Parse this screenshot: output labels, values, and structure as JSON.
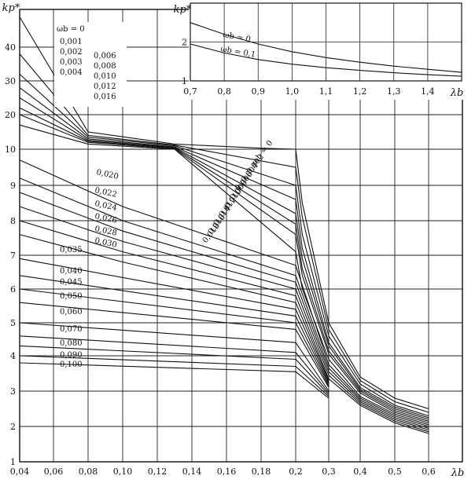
{
  "chart_data": [
    {
      "type": "line",
      "ylabel": "kp*",
      "xlabel": "λb",
      "x_ticks": [
        "0,04",
        "0,06",
        "0,08",
        "0,10",
        "0,12",
        "0,14",
        "0,16",
        "0,18",
        "0,2",
        "0,3",
        "0,4",
        "0,5",
        "0,6"
      ],
      "y_ticks": [
        "1",
        "2",
        "3",
        "4",
        "5",
        "6",
        "7",
        "8",
        "9",
        "10",
        "20",
        "30",
        "40"
      ],
      "grid": true,
      "series_labels_upper": [
        "ωb = 0",
        "0,001",
        "0,002",
        "0,003",
        "0,004",
        "0,006",
        "0,008",
        "0,010",
        "0,012",
        "0,016"
      ],
      "series_labels_right": [
        "ωb = 0",
        "0,002",
        "0,004",
        "0,006",
        "0,008",
        "0,010",
        "0,012",
        "0,014",
        "0,016",
        "0,018"
      ],
      "series_labels_lower": [
        "0,020",
        "0,022",
        "0,024",
        "0,026",
        "0,028",
        "0,030",
        "0,035",
        "0,040",
        "0,045",
        "0,050",
        "0,060",
        "0,070",
        "0,080",
        "0,090",
        "0,100"
      ],
      "series": [
        {
          "omega": 0.0,
          "x": [
            0.04,
            0.08,
            0.13,
            0.18,
            0.2,
            0.22,
            0.3,
            0.4,
            0.5,
            0.6
          ],
          "y": [
            48,
            15,
            11.5,
            10.3,
            10.0,
            8.5,
            5.0,
            3.4,
            2.8,
            2.5
          ]
        },
        {
          "omega": 0.002,
          "x": [
            0.04,
            0.08,
            0.13,
            0.2,
            0.22,
            0.3,
            0.4,
            0.5,
            0.6
          ],
          "y": [
            38,
            14,
            11.2,
            9.5,
            8.1,
            4.8,
            3.3,
            2.7,
            2.4
          ]
        },
        {
          "omega": 0.004,
          "x": [
            0.04,
            0.08,
            0.13,
            0.2,
            0.22,
            0.3,
            0.4,
            0.5,
            0.6
          ],
          "y": [
            32,
            13.5,
            11.0,
            9.0,
            7.6,
            4.6,
            3.2,
            2.6,
            2.3
          ]
        },
        {
          "omega": 0.006,
          "x": [
            0.04,
            0.08,
            0.13,
            0.2,
            0.22,
            0.3,
            0.4,
            0.5,
            0.6
          ],
          "y": [
            28,
            13.0,
            10.7,
            8.6,
            7.2,
            4.4,
            3.1,
            2.55,
            2.25
          ]
        },
        {
          "omega": 0.008,
          "x": [
            0.04,
            0.08,
            0.13,
            0.2,
            0.22,
            0.3,
            0.4,
            0.5,
            0.6
          ],
          "y": [
            25,
            12.6,
            10.5,
            8.2,
            6.9,
            4.3,
            3.05,
            2.5,
            2.2
          ]
        },
        {
          "omega": 0.01,
          "x": [
            0.04,
            0.08,
            0.13,
            0.2,
            0.22,
            0.3,
            0.4,
            0.5,
            0.6
          ],
          "y": [
            22,
            12.3,
            10.3,
            7.9,
            6.6,
            4.15,
            3.0,
            2.45,
            2.15
          ]
        },
        {
          "omega": 0.012,
          "x": [
            0.04,
            0.08,
            0.13,
            0.2,
            0.22,
            0.3,
            0.4,
            0.5,
            0.6
          ],
          "y": [
            20,
            12.0,
            10.1,
            7.6,
            6.4,
            4.05,
            2.95,
            2.4,
            2.1
          ]
        },
        {
          "omega": 0.016,
          "x": [
            0.04,
            0.08,
            0.13,
            0.2,
            0.22,
            0.3,
            0.4,
            0.5,
            0.6
          ],
          "y": [
            17,
            11.5,
            10.0,
            7.1,
            6.0,
            3.9,
            2.85,
            2.35,
            2.05
          ]
        },
        {
          "omega": 0.02,
          "x": [
            0.04,
            0.1,
            0.2,
            0.3,
            0.4,
            0.5,
            0.6
          ],
          "y": [
            9.7,
            8.4,
            6.7,
            3.75,
            2.8,
            2.3,
            2.0
          ]
        },
        {
          "omega": 0.022,
          "x": [
            0.04,
            0.1,
            0.2,
            0.3,
            0.4,
            0.5,
            0.6
          ],
          "y": [
            9.2,
            8.0,
            6.4,
            3.65,
            2.75,
            2.25,
            1.95
          ]
        },
        {
          "omega": 0.024,
          "x": [
            0.04,
            0.1,
            0.2,
            0.3,
            0.4,
            0.5,
            0.6
          ],
          "y": [
            8.8,
            7.7,
            6.2,
            3.55,
            2.7,
            2.2,
            1.9
          ]
        },
        {
          "omega": 0.026,
          "x": [
            0.04,
            0.1,
            0.2,
            0.3,
            0.4,
            0.5,
            0.6
          ],
          "y": [
            8.4,
            7.4,
            6.0,
            3.45,
            2.65,
            2.15,
            1.85
          ]
        },
        {
          "omega": 0.028,
          "x": [
            0.04,
            0.1,
            0.2,
            0.3,
            0.4,
            0.5,
            0.6
          ],
          "y": [
            8.0,
            7.1,
            5.8,
            3.35,
            2.6,
            2.1,
            1.8
          ]
        },
        {
          "omega": 0.03,
          "x": [
            0.04,
            0.1,
            0.2,
            0.3
          ],
          "y": [
            7.6,
            6.8,
            5.6,
            3.3
          ]
        },
        {
          "omega": 0.035,
          "x": [
            0.04,
            0.2,
            0.3
          ],
          "y": [
            6.9,
            5.4,
            3.25
          ]
        },
        {
          "omega": 0.04,
          "x": [
            0.04,
            0.2,
            0.3
          ],
          "y": [
            6.4,
            5.2,
            3.2
          ]
        },
        {
          "omega": 0.045,
          "x": [
            0.04,
            0.2,
            0.3
          ],
          "y": [
            6.0,
            5.0,
            3.15
          ]
        },
        {
          "omega": 0.05,
          "x": [
            0.04,
            0.2,
            0.3
          ],
          "y": [
            5.6,
            4.8,
            3.1
          ]
        },
        {
          "omega": 0.06,
          "x": [
            0.04,
            0.2,
            0.3
          ],
          "y": [
            5.0,
            4.4,
            3.0
          ]
        },
        {
          "omega": 0.07,
          "x": [
            0.04,
            0.2,
            0.3
          ],
          "y": [
            4.6,
            4.1,
            2.95
          ]
        },
        {
          "omega": 0.08,
          "x": [
            0.04,
            0.2,
            0.3
          ],
          "y": [
            4.3,
            3.9,
            2.9
          ]
        },
        {
          "omega": 0.09,
          "x": [
            0.04,
            0.2,
            0.3
          ],
          "y": [
            4.0,
            3.7,
            2.85
          ]
        },
        {
          "omega": 0.1,
          "x": [
            0.04,
            0.2,
            0.3
          ],
          "y": [
            3.8,
            3.55,
            2.8
          ]
        }
      ]
    },
    {
      "type": "line",
      "ylabel": "kp*",
      "xlabel": "λb",
      "x_ticks": [
        "0,7",
        "0,8",
        "0,9",
        "1,0",
        "1,1",
        "1,2",
        "1,3",
        "1,4"
      ],
      "y_ticks": [
        "1",
        "2"
      ],
      "xlim": [
        0.7,
        1.5
      ],
      "ylim": [
        1,
        3
      ],
      "grid": true,
      "series": [
        {
          "name": "ωb = 0",
          "x": [
            0.7,
            0.8,
            0.9,
            1.0,
            1.1,
            1.2,
            1.3,
            1.4,
            1.5
          ],
          "y": [
            2.5,
            2.2,
            1.95,
            1.75,
            1.6,
            1.48,
            1.38,
            1.3,
            1.22
          ]
        },
        {
          "name": "ωb = 0,1",
          "x": [
            0.7,
            0.8,
            0.9,
            1.0,
            1.1,
            1.2,
            1.3,
            1.4,
            1.5
          ],
          "y": [
            1.95,
            1.72,
            1.55,
            1.43,
            1.34,
            1.27,
            1.21,
            1.16,
            1.12
          ]
        }
      ]
    }
  ]
}
